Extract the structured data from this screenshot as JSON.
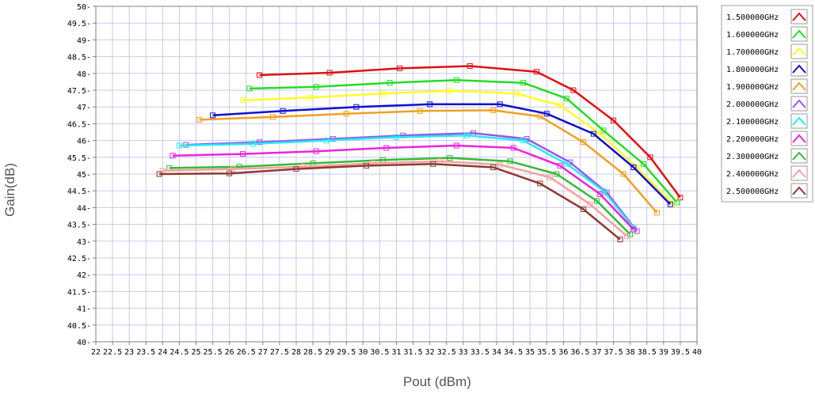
{
  "chart_data": {
    "type": "line",
    "xlabel": "Pout (dBm)",
    "ylabel": "Gain(dB)",
    "xlim": [
      22,
      40
    ],
    "ylim": [
      40,
      50
    ],
    "x_ticks": [
      "22",
      "22.5",
      "23",
      "23.5",
      "24",
      "24.5",
      "25",
      "25.5",
      "26",
      "26.5",
      "27",
      "27.5",
      "28",
      "28.5",
      "29",
      "29.5",
      "30",
      "30.5",
      "31",
      "31.5",
      "32",
      "32.5",
      "33",
      "33.5",
      "34",
      "34.5",
      "35",
      "35.5",
      "36",
      "36.5",
      "37",
      "37.5",
      "38",
      "38.5",
      "39",
      "39.5",
      "40"
    ],
    "y_ticks": [
      "40",
      "40.5",
      "41",
      "41.5",
      "42",
      "42.5",
      "43",
      "43.5",
      "44",
      "44.5",
      "45",
      "45.5",
      "46",
      "46.5",
      "47",
      "47.5",
      "48",
      "48.5",
      "49",
      "49.5",
      "50"
    ],
    "grid": true,
    "legend_position": "right",
    "series": [
      {
        "name": "1.500000GHz",
        "color": "#e01010",
        "x": [
          26.9,
          29.0,
          31.1,
          33.2,
          35.2,
          36.3,
          37.5,
          38.6,
          39.5
        ],
        "y": [
          47.95,
          48.02,
          48.15,
          48.22,
          48.05,
          47.5,
          46.6,
          45.5,
          44.3
        ]
      },
      {
        "name": "1.600000GHz",
        "color": "#22dd22",
        "x": [
          26.6,
          28.6,
          30.8,
          32.8,
          34.8,
          36.1,
          37.2,
          38.4,
          39.4
        ],
        "y": [
          47.55,
          47.6,
          47.72,
          47.8,
          47.72,
          47.25,
          46.3,
          45.3,
          44.15
        ]
      },
      {
        "name": "1.700000GHz",
        "color": "#ffff22",
        "x": [
          26.4,
          28.4,
          30.6,
          32.6,
          34.6,
          35.9,
          37.1,
          38.2,
          39.3
        ],
        "y": [
          47.2,
          47.28,
          47.4,
          47.48,
          47.4,
          47.05,
          46.2,
          45.2,
          44.1
        ]
      },
      {
        "name": "1.800000GHz",
        "color": "#1010cc",
        "x": [
          25.5,
          27.6,
          29.8,
          32.0,
          34.1,
          35.5,
          36.9,
          38.1,
          39.2
        ],
        "y": [
          46.75,
          46.88,
          47.0,
          47.08,
          47.08,
          46.8,
          46.2,
          45.2,
          44.1
        ]
      },
      {
        "name": "1.900000GHz",
        "color": "#f0a020",
        "x": [
          25.1,
          27.3,
          29.5,
          31.7,
          33.9,
          35.3,
          36.6,
          37.8,
          38.8
        ],
        "y": [
          46.62,
          46.7,
          46.8,
          46.88,
          46.9,
          46.72,
          45.95,
          45.0,
          43.85
        ]
      },
      {
        "name": "2.000000GHz",
        "color": "#9955ee",
        "x": [
          24.7,
          26.9,
          29.1,
          31.2,
          33.3,
          34.9,
          36.2,
          37.3,
          38.2
        ],
        "y": [
          45.87,
          45.95,
          46.05,
          46.15,
          46.22,
          46.05,
          45.35,
          44.45,
          43.3
        ]
      },
      {
        "name": "2.100000GHz",
        "color": "#22eeee",
        "x": [
          24.5,
          26.7,
          28.9,
          31.0,
          33.1,
          34.8,
          36.1,
          37.2,
          38.1
        ],
        "y": [
          45.85,
          45.9,
          46.0,
          46.1,
          46.15,
          46.0,
          45.3,
          44.5,
          43.4
        ]
      },
      {
        "name": "2.200000GHz",
        "color": "#ee22dd",
        "x": [
          24.3,
          26.4,
          28.6,
          30.7,
          32.8,
          34.5,
          35.9,
          37.1,
          38.1
        ],
        "y": [
          45.55,
          45.6,
          45.68,
          45.78,
          45.85,
          45.78,
          45.25,
          44.4,
          43.35
        ]
      },
      {
        "name": "2.300000GHz",
        "color": "#33bb33",
        "x": [
          24.2,
          26.3,
          28.5,
          30.6,
          32.6,
          34.4,
          35.8,
          37.0,
          38.0
        ],
        "y": [
          45.18,
          45.22,
          45.32,
          45.42,
          45.48,
          45.38,
          45.0,
          44.2,
          43.2
        ]
      },
      {
        "name": "2.400000GHz",
        "color": "#f4a0a0",
        "x": [
          24.0,
          26.1,
          28.2,
          30.3,
          32.3,
          34.1,
          35.6,
          36.8,
          37.9
        ],
        "y": [
          45.1,
          45.15,
          45.22,
          45.32,
          45.38,
          45.28,
          44.9,
          44.1,
          43.15
        ]
      },
      {
        "name": "2.500000GHz",
        "color": "#8b3a30",
        "x": [
          23.9,
          26.0,
          28.0,
          30.1,
          32.1,
          33.9,
          35.3,
          36.6,
          37.7
        ],
        "y": [
          45.0,
          45.02,
          45.15,
          45.25,
          45.3,
          45.2,
          44.72,
          43.95,
          43.05
        ]
      }
    ]
  }
}
